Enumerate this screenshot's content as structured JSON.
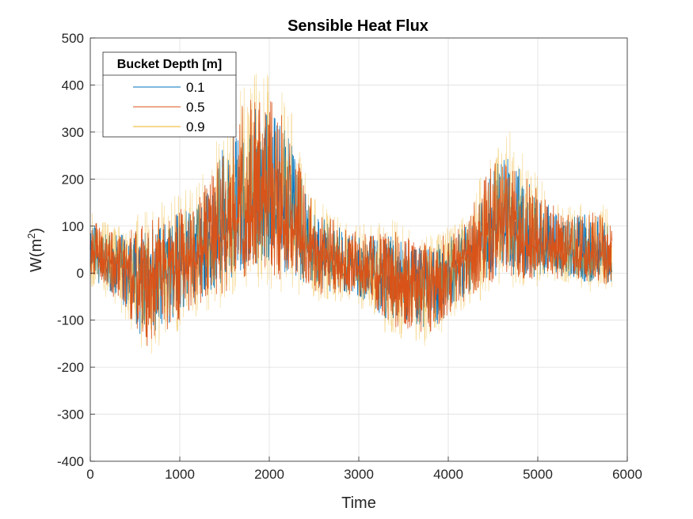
{
  "chart_data": {
    "type": "line",
    "title": "Sensible Heat Flux",
    "xlabel": "Time",
    "ylabel_base": "W(m",
    "ylabel_sup": "2",
    "ylabel_close": ")",
    "xlim": [
      0,
      6000
    ],
    "ylim": [
      -400,
      500
    ],
    "xticks": [
      0,
      1000,
      2000,
      3000,
      4000,
      5000,
      6000
    ],
    "yticks": [
      -400,
      -300,
      -200,
      -100,
      0,
      100,
      200,
      300,
      400,
      500
    ],
    "grid": true,
    "legend_title": "Bucket Depth [m]",
    "legend_position": "top-left",
    "x_extent": [
      0,
      5830
    ],
    "envelope_points": [
      [
        0,
        -10,
        40,
        110
      ],
      [
        150,
        -30,
        30,
        90
      ],
      [
        300,
        -50,
        20,
        80
      ],
      [
        450,
        -90,
        0,
        90
      ],
      [
        600,
        -150,
        -20,
        90
      ],
      [
        750,
        -120,
        0,
        110
      ],
      [
        900,
        -110,
        10,
        120
      ],
      [
        1050,
        -80,
        20,
        140
      ],
      [
        1200,
        -60,
        40,
        150
      ],
      [
        1350,
        -40,
        60,
        200
      ],
      [
        1500,
        -30,
        100,
        280
      ],
      [
        1650,
        0,
        120,
        330
      ],
      [
        1800,
        10,
        140,
        350
      ],
      [
        1950,
        20,
        150,
        360
      ],
      [
        2100,
        0,
        130,
        330
      ],
      [
        2250,
        -10,
        100,
        280
      ],
      [
        2400,
        -20,
        60,
        180
      ],
      [
        2550,
        -40,
        30,
        120
      ],
      [
        2700,
        -40,
        30,
        110
      ],
      [
        2850,
        -40,
        20,
        90
      ],
      [
        3000,
        -50,
        10,
        80
      ],
      [
        3150,
        -70,
        0,
        80
      ],
      [
        3300,
        -100,
        -10,
        80
      ],
      [
        3450,
        -110,
        -20,
        80
      ],
      [
        3600,
        -110,
        -20,
        60
      ],
      [
        3750,
        -120,
        -10,
        60
      ],
      [
        3900,
        -110,
        0,
        70
      ],
      [
        4050,
        -70,
        10,
        80
      ],
      [
        4200,
        -50,
        30,
        100
      ],
      [
        4350,
        -30,
        60,
        170
      ],
      [
        4500,
        -10,
        90,
        220
      ],
      [
        4650,
        0,
        100,
        260
      ],
      [
        4800,
        -10,
        80,
        220
      ],
      [
        4950,
        -10,
        60,
        180
      ],
      [
        5100,
        0,
        50,
        150
      ],
      [
        5250,
        -10,
        40,
        120
      ],
      [
        5400,
        -10,
        40,
        120
      ],
      [
        5550,
        -20,
        40,
        130
      ],
      [
        5700,
        -20,
        30,
        120
      ],
      [
        5830,
        -20,
        30,
        110
      ]
    ],
    "series": [
      {
        "name": "0.1",
        "color": "#0072BD",
        "amplitude": 1.0
      },
      {
        "name": "0.5",
        "color": "#D95319",
        "amplitude": 1.1
      },
      {
        "name": "0.9",
        "color": "#EDB120",
        "amplitude": 1.35
      }
    ]
  }
}
